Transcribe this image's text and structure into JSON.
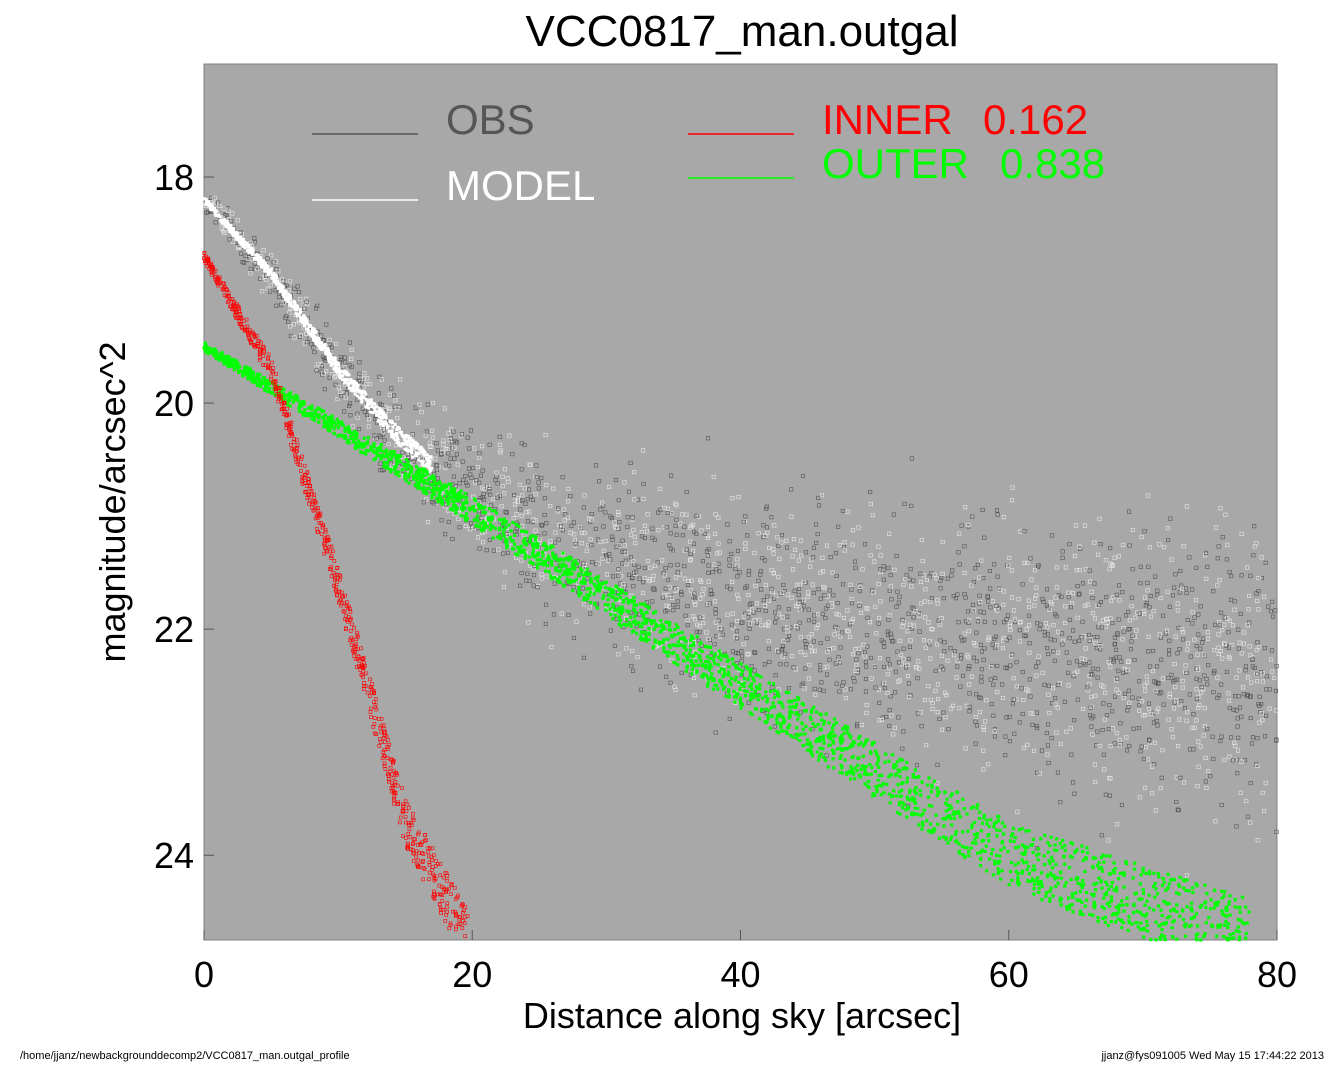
{
  "chart_data": {
    "type": "scatter",
    "title": "VCC0817_man.outgal",
    "xlabel": "Distance along sky [arcsec]",
    "ylabel": "magnitude/arcsec^2",
    "xlim": [
      0,
      80
    ],
    "ylim": [
      24.75,
      17.0
    ],
    "y_inverted": true,
    "xticks": [
      0,
      20,
      40,
      60,
      80
    ],
    "yticks": [
      18,
      20,
      22,
      24
    ],
    "grid": false,
    "background": "#a8a8a8",
    "legend": [
      {
        "label": "OBS",
        "color": "#555555"
      },
      {
        "label": "MODEL",
        "color": "#ffffff"
      },
      {
        "label": "INNER",
        "value": "0.162",
        "color": "#ff0000"
      },
      {
        "label": "OUTER",
        "value": "0.838",
        "color": "#00ff00"
      }
    ],
    "series": [
      {
        "name": "OBS",
        "color": "#555555",
        "x": [
          0,
          5,
          10,
          15,
          20,
          25,
          30,
          35,
          40,
          50,
          60,
          70,
          80
        ],
        "y": [
          18.2,
          18.9,
          19.7,
          20.4,
          20.8,
          21.1,
          21.4,
          21.6,
          21.8,
          22.0,
          22.2,
          22.3,
          22.4
        ]
      },
      {
        "name": "MODEL",
        "color": "#ffffff",
        "x": [
          0,
          5,
          10,
          13,
          15,
          17
        ],
        "y": [
          18.2,
          18.85,
          19.7,
          20.1,
          20.35,
          20.55
        ]
      },
      {
        "name": "INNER",
        "color": "#ff0000",
        "x": [
          0,
          5,
          10,
          15,
          19.7
        ],
        "y": [
          18.7,
          19.7,
          21.6,
          23.7,
          24.75
        ]
      },
      {
        "name": "OUTER",
        "color": "#00ff00",
        "x": [
          0,
          20,
          40,
          60,
          78
        ],
        "y": [
          19.5,
          20.95,
          22.5,
          24.0,
          24.75
        ]
      }
    ]
  },
  "footer": {
    "left": "/home/jjanz/newbackgrounddecomp2/VCC0817_man.outgal_profile",
    "right": "jjanz@fys091005  Wed May 15 17:44:22 2013"
  }
}
